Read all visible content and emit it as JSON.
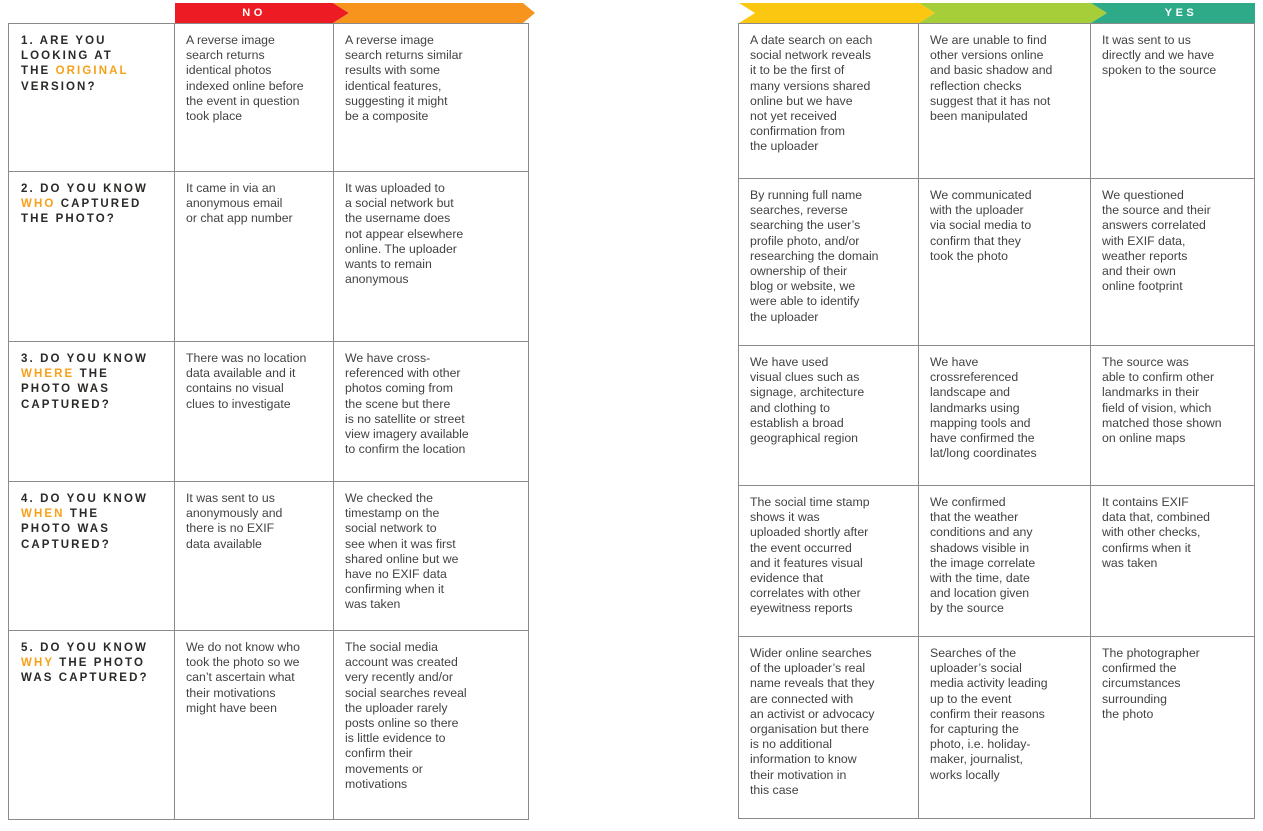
{
  "palette": {
    "no_band": "#ED1C24",
    "orange_band": "#F7941D",
    "yellow_band": "#FBC710",
    "green_band": "#A6CE39",
    "yes_band": "#2FAA89",
    "question_highlight": "#F7A11A",
    "question_text": "#2B2927",
    "body_text": "#424242",
    "table_border": "#8A8A8A",
    "band_label_text": "#FFFFFF"
  },
  "left_table": {
    "no_label": "NO",
    "rows": [
      {
        "question": {
          "pre": "1. ARE YOU\nLOOKING AT\nTHE ",
          "highlight": "ORIGINAL",
          "post": "\nVERSION?"
        },
        "cells": [
          "A reverse image\nsearch returns\nidentical photos\nindexed online before\nthe event in question\ntook place",
          "A reverse image\nsearch returns similar\nresults with some\nidentical features,\nsuggesting it might\nbe a composite"
        ]
      },
      {
        "question": {
          "pre": "2. DO YOU KNOW\n",
          "highlight": "WHO",
          "post": " CAPTURED\nTHE PHOTO?"
        },
        "cells": [
          "It came in via an\nanonymous email\nor chat app number",
          "It was uploaded to\na social network but\nthe username does\nnot appear elsewhere\nonline. The uploader\nwants to remain\nanonymous"
        ]
      },
      {
        "question": {
          "pre": "3. DO YOU KNOW\n",
          "highlight": "WHERE",
          "post": " THE\nPHOTO WAS\nCAPTURED?"
        },
        "cells": [
          "There was no location\ndata available and it\ncontains no visual\nclues to investigate",
          "We have cross-\nreferenced with other\nphotos coming from\nthe scene but there\nis no satellite or street\nview imagery available\nto confirm the location"
        ]
      },
      {
        "question": {
          "pre": "4. DO YOU KNOW\n",
          "highlight": "WHEN",
          "post": " THE\nPHOTO WAS\nCAPTURED?"
        },
        "cells": [
          "It was sent to us\nanonymously and\nthere is no EXIF\ndata available",
          "We checked the\ntimestamp on the\nsocial network to\nsee when it was first\nshared online but we\nhave no EXIF data\nconfirming when it\nwas taken"
        ]
      },
      {
        "question": {
          "pre": "5. DO YOU KNOW\n",
          "highlight": "WHY",
          "post": " THE PHOTO\nWAS CAPTURED?"
        },
        "cells": [
          "We do not know who\ntook the photo so we\ncan’t ascertain what\ntheir motivations\nmight have been",
          "The social media\naccount was created\nvery recently and/or\nsocial searches reveal\nthe uploader rarely\nposts online so there\nis little evidence to\nconfirm their\nmovements or\nmotivations"
        ]
      }
    ]
  },
  "right_table": {
    "yes_label": "YES",
    "rows": [
      {
        "cells": [
          "A date search on each\nsocial network reveals\nit to be the first of\nmany versions shared\nonline but we have\nnot yet received\nconfirmation from\nthe uploader",
          "We are unable to find\nother versions online\nand basic shadow and\nreflection checks\nsuggest that it has not\nbeen manipulated",
          "It was sent to us\ndirectly and we have\nspoken to the source"
        ]
      },
      {
        "cells": [
          "By running full name\nsearches, reverse\nsearching the user’s\nprofile photo, and/or\nresearching the domain\nownership of their\nblog or website, we\nwere able to identify\nthe uploader",
          "We communicated\nwith the uploader\nvia social media to\nconfirm that they\ntook the photo",
          "We questioned\nthe source and their\nanswers correlated\nwith EXIF data,\nweather reports\nand their own\nonline footprint"
        ]
      },
      {
        "cells": [
          "We have used\nvisual clues such as\nsignage, architecture\nand clothing to\nestablish a broad\ngeographical region",
          "We have\ncrossreferenced\nlandscape and\nlandmarks using\nmapping tools and\nhave confirmed the\nlat/long coordinates",
          "The source was\nable to confirm other\nlandmarks in their\nfield of vision, which\nmatched those shown\non online maps"
        ]
      },
      {
        "cells": [
          "The social time stamp\nshows it was\nuploaded shortly after\nthe event occurred\nand it features visual\nevidence that\ncorrelates with other\neyewitness reports",
          "We confirmed\nthat the weather\nconditions and any\nshadows visible in\nthe image correlate\nwith the time, date\nand location given\nby the source",
          "It contains EXIF\ndata that, combined\nwith other checks,\nconfirms when it\nwas taken"
        ]
      },
      {
        "cells": [
          "Wider online searches\nof the uploader’s real\nname reveals that they\nare connected with\nan activist or advocacy\norganisation but there\nis no additional\ninformation to know\ntheir motivation in\nthis case",
          "Searches of the\nuploader’s social\nmedia activity leading\nup to the event\nconfirm their reasons\nfor capturing the\nphoto, i.e. holiday-\nmaker, journalist,\nworks locally",
          "The photographer\nconfirmed the\ncircumstances\nsurrounding\nthe photo"
        ]
      }
    ]
  }
}
